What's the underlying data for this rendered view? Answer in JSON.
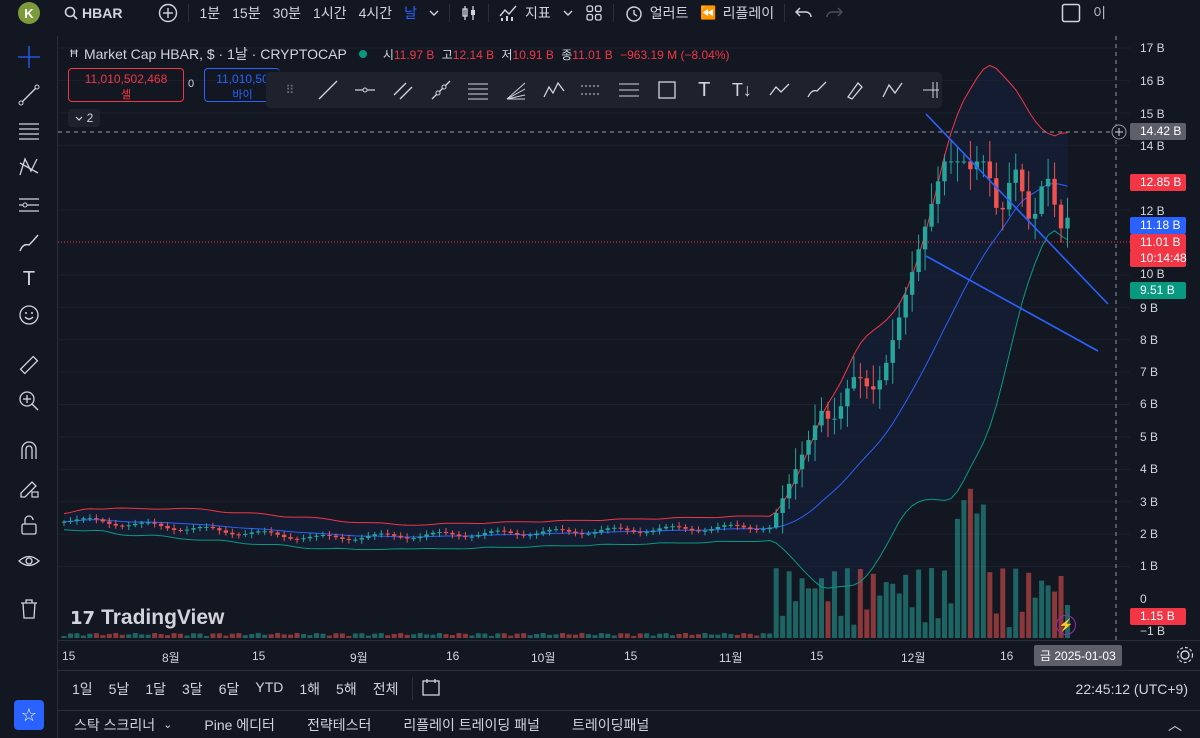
{
  "topbar": {
    "avatar": "K",
    "symbol": "HBAR",
    "intervals": [
      "1분",
      "15분",
      "30분",
      "1시간",
      "4시간",
      "날"
    ],
    "active_interval": "날",
    "indicators_label": "지표",
    "alert_label": "얼러트",
    "replay_label": "리플레이",
    "right_label": "이"
  },
  "legend": {
    "title": "Market Cap HBAR, $ · 1날 · CRYPTOCAP",
    "open_label": "시",
    "open": "11.97 B",
    "high_label": "고",
    "high": "12.14 B",
    "low_label": "저",
    "low": "10.91 B",
    "close_label": "종",
    "close": "11.01 B",
    "change": "−963.19 M (−8.04%)",
    "collapse_count": "2"
  },
  "trade": {
    "sell_price": "11,010,502,468",
    "sell_label": "셀",
    "spread": "0",
    "buy_price": "11,010,50",
    "buy_label": "바이"
  },
  "price_axis": {
    "labels": [
      "17 B",
      "16 B",
      "15 B",
      "14 B",
      "12 B",
      "10 B",
      "9 B",
      "8 B",
      "7 B",
      "6 B",
      "5 B",
      "4 B",
      "3 B",
      "2 B",
      "1 B",
      "0",
      "−1 B"
    ],
    "crosshair_price": "14.42 B",
    "bb_upper": "12.85 B",
    "bb_basis": "11.18 B",
    "last_price": "11.01 B",
    "countdown": "10:14:48",
    "bb_lower": "9.51 B",
    "volume": "1.15 B",
    "colors": {
      "up": "#26a69a",
      "down": "#ef5350",
      "basis": "#2962ff",
      "upper": "#f23645",
      "lower": "#089981"
    }
  },
  "time_axis": {
    "labels": [
      "15",
      "8월",
      "15",
      "9월",
      "16",
      "10월",
      "15",
      "11월",
      "15",
      "12월",
      "16"
    ],
    "crosshair_date": "금 2025-01-03"
  },
  "range_bar": {
    "ranges": [
      "1일",
      "5날",
      "1달",
      "3달",
      "6달",
      "YTD",
      "1해",
      "5해",
      "전체"
    ],
    "clock": "22:45:12 (UTC+9)"
  },
  "bottom_tabs": [
    "스탁 스크리너",
    "Pine 에디터",
    "전략테스터",
    "리플레이 트레이딩 패널",
    "트레이딩패널"
  ],
  "watermark": "TradingView"
}
